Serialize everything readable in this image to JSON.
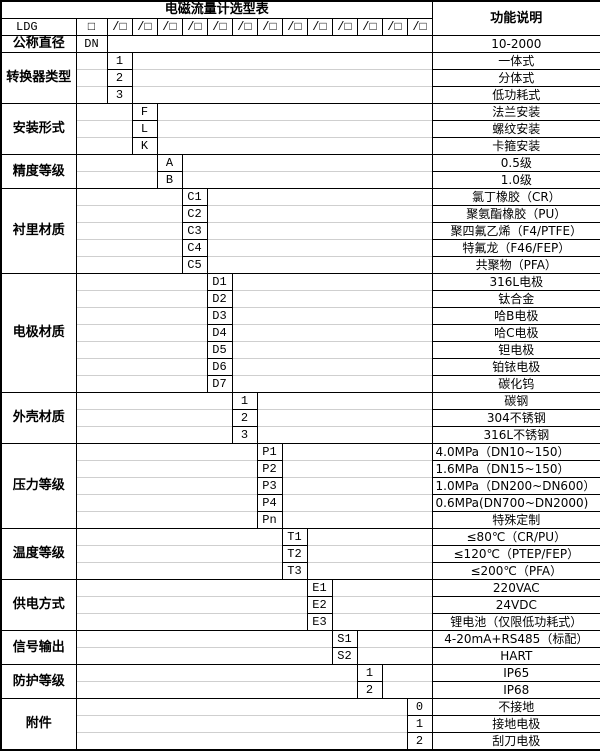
{
  "title": "电磁流量计选型表",
  "right_header": "功能说明",
  "model": {
    "prefix": "LDG",
    "first_slot": "□",
    "repeat_slot": "/□",
    "repeat_count": 13
  },
  "groups": [
    {
      "key": "dn",
      "label": "公称直径",
      "col": 0,
      "items": [
        {
          "code": "DN",
          "desc": "10-2000"
        }
      ]
    },
    {
      "key": "converter-type",
      "label": "转换器类型",
      "col": 1,
      "items": [
        {
          "code": "1",
          "desc": "一体式"
        },
        {
          "code": "2",
          "desc": "分体式"
        },
        {
          "code": "3",
          "desc": "低功耗式"
        }
      ]
    },
    {
      "key": "installation",
      "label": "安装形式",
      "col": 2,
      "items": [
        {
          "code": "F",
          "desc": "法兰安装"
        },
        {
          "code": "L",
          "desc": "螺纹安装"
        },
        {
          "code": "K",
          "desc": "卡箍安装"
        }
      ]
    },
    {
      "key": "accuracy",
      "label": "精度等级",
      "col": 3,
      "items": [
        {
          "code": "A",
          "desc": "0.5级"
        },
        {
          "code": "B",
          "desc": "1.0级"
        }
      ]
    },
    {
      "key": "liner",
      "label": "衬里材质",
      "col": 4,
      "items": [
        {
          "code": "C1",
          "desc": "氯丁橡胶（CR）"
        },
        {
          "code": "C2",
          "desc": "聚氨酯橡胶（PU）"
        },
        {
          "code": "C3",
          "desc": "聚四氟乙烯（F4/PTFE）"
        },
        {
          "code": "C4",
          "desc": "特氟龙（F46/FEP）"
        },
        {
          "code": "C5",
          "desc": "共聚物（PFA）"
        }
      ]
    },
    {
      "key": "electrode",
      "label": "电极材质",
      "col": 5,
      "items": [
        {
          "code": "D1",
          "desc": "316L电极"
        },
        {
          "code": "D2",
          "desc": "钛合金"
        },
        {
          "code": "D3",
          "desc": "哈B电极"
        },
        {
          "code": "D4",
          "desc": "哈C电极"
        },
        {
          "code": "D5",
          "desc": "钽电极"
        },
        {
          "code": "D6",
          "desc": "铂铱电极"
        },
        {
          "code": "D7",
          "desc": "碳化钨"
        }
      ]
    },
    {
      "key": "housing",
      "label": "外壳材质",
      "col": 6,
      "items": [
        {
          "code": "1",
          "desc": "碳钢"
        },
        {
          "code": "2",
          "desc": "304不锈钢"
        },
        {
          "code": "3",
          "desc": "316L不锈钢"
        }
      ]
    },
    {
      "key": "pressure",
      "label": "压力等级",
      "col": 7,
      "items": [
        {
          "code": "P1",
          "desc": "4.0MPa（DN10~150）",
          "align": "left"
        },
        {
          "code": "P2",
          "desc": "1.6MPa（DN15~150）",
          "align": "left"
        },
        {
          "code": "P3",
          "desc": "1.0MPa（DN200~DN600）",
          "align": "left"
        },
        {
          "code": "P4",
          "desc": "0.6MPa(DN700~DN2000)",
          "align": "left"
        },
        {
          "code": "Pn",
          "desc": "特殊定制"
        }
      ]
    },
    {
      "key": "temperature",
      "label": "温度等级",
      "col": 8,
      "items": [
        {
          "code": "T1",
          "desc": "≤80℃（CR/PU）"
        },
        {
          "code": "T2",
          "desc": "≤120℃（PTEP/FEP）"
        },
        {
          "code": "T3",
          "desc": "≤200℃（PFA）"
        }
      ]
    },
    {
      "key": "power",
      "label": "供电方式",
      "col": 9,
      "items": [
        {
          "code": "E1",
          "desc": "220VAC"
        },
        {
          "code": "E2",
          "desc": "24VDC"
        },
        {
          "code": "E3",
          "desc": "锂电池（仅限低功耗式）"
        }
      ]
    },
    {
      "key": "signal",
      "label": "信号输出",
      "col": 10,
      "items": [
        {
          "code": "S1",
          "desc": "4-20mA+RS485（标配）"
        },
        {
          "code": "S2",
          "desc": "HART"
        }
      ]
    },
    {
      "key": "protection",
      "label": "防护等级",
      "col": 11,
      "items": [
        {
          "code": "1",
          "desc": "IP65"
        },
        {
          "code": "2",
          "desc": "IP68"
        }
      ]
    },
    {
      "key": "accessory",
      "label": "附件",
      "col": 13,
      "items": [
        {
          "code": "0",
          "desc": "不接地"
        },
        {
          "code": "1",
          "desc": "接地电极"
        },
        {
          "code": "2",
          "desc": "刮刀电极"
        }
      ]
    }
  ]
}
